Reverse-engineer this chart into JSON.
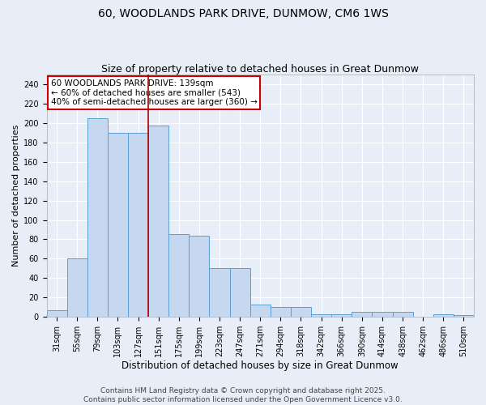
{
  "title1": "60, WOODLANDS PARK DRIVE, DUNMOW, CM6 1WS",
  "title2": "Size of property relative to detached houses in Great Dunmow",
  "xlabel": "Distribution of detached houses by size in Great Dunmow",
  "ylabel": "Number of detached properties",
  "categories": [
    "31sqm",
    "55sqm",
    "79sqm",
    "103sqm",
    "127sqm",
    "151sqm",
    "175sqm",
    "199sqm",
    "223sqm",
    "247sqm",
    "271sqm",
    "294sqm",
    "318sqm",
    "342sqm",
    "366sqm",
    "390sqm",
    "414sqm",
    "438sqm",
    "462sqm",
    "486sqm",
    "510sqm"
  ],
  "values": [
    7,
    60,
    205,
    190,
    190,
    197,
    85,
    84,
    50,
    50,
    13,
    10,
    10,
    3,
    3,
    5,
    5,
    5,
    0,
    3,
    2
  ],
  "bar_color": "#c5d8f0",
  "bar_edge_color": "#5a9fd4",
  "vline_index": 5.0,
  "vline_color": "#aa0000",
  "ylim": [
    0,
    250
  ],
  "yticks": [
    0,
    20,
    40,
    60,
    80,
    100,
    120,
    140,
    160,
    180,
    200,
    220,
    240
  ],
  "annotation_text": "60 WOODLANDS PARK DRIVE: 139sqm\n← 60% of detached houses are smaller (543)\n40% of semi-detached houses are larger (360) →",
  "annotation_box_color": "#ffffff",
  "annotation_box_edge": "#cc0000",
  "footer1": "Contains HM Land Registry data © Crown copyright and database right 2025.",
  "footer2": "Contains public sector information licensed under the Open Government Licence v3.0.",
  "background_color": "#e8eef8",
  "grid_color": "#ffffff",
  "title1_fontsize": 10,
  "title2_fontsize": 9,
  "xlabel_fontsize": 8.5,
  "ylabel_fontsize": 8,
  "tick_fontsize": 7,
  "annotation_fontsize": 7.5,
  "footer_fontsize": 6.5
}
